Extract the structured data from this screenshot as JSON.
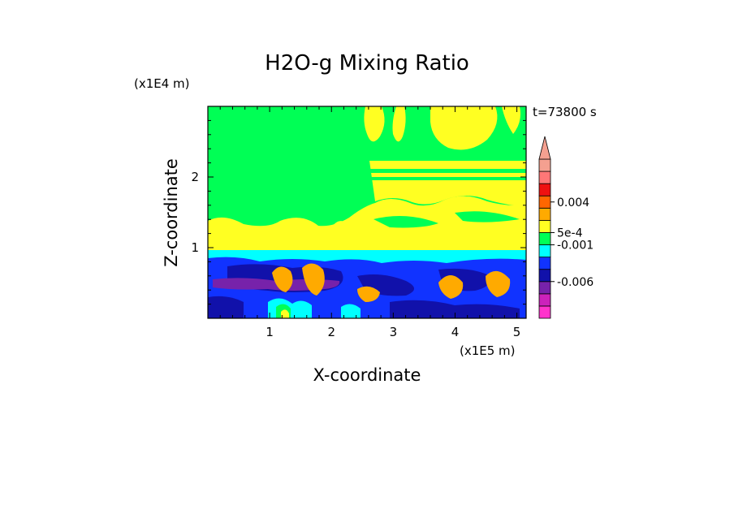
{
  "chart_data": {
    "type": "heatmap",
    "title": "H2O-g Mixing Ratio",
    "time_label": "t=73800 s",
    "xlabel": "X-coordinate",
    "ylabel": "Z-coordinate",
    "x_scale_label": "(x1E5 m)",
    "y_scale_label": "(x1E4 m)",
    "xlim": [
      0,
      5.15
    ],
    "ylim": [
      0,
      3.0
    ],
    "x_ticks": [
      {
        "value": 1,
        "label": "1"
      },
      {
        "value": 2,
        "label": "2"
      },
      {
        "value": 3,
        "label": "3"
      },
      {
        "value": 4,
        "label": "4"
      },
      {
        "value": 5,
        "label": "5"
      }
    ],
    "y_ticks": [
      {
        "value": 1,
        "label": "1"
      },
      {
        "value": 2,
        "label": "2"
      }
    ],
    "colorbar": {
      "extend": "max",
      "levels_bottom_to_top": [
        "#ff33cc",
        "#cc22bb",
        "#7722aa",
        "#1111aa",
        "#1133ff",
        "#00ffff",
        "#00ff55",
        "#ffff22",
        "#ffaa00",
        "#ff6600",
        "#ee1111",
        "#ff7777",
        "#f4a090"
      ],
      "labels": [
        {
          "text": "-0.006",
          "level": 3
        },
        {
          "text": "-0.001",
          "level": 6
        },
        {
          "text": "5e-4",
          "level": 7
        },
        {
          "text": "0.004",
          "level": 9.5
        }
      ]
    },
    "fields": [
      {
        "color": "#00ff55",
        "region": "upper domain, z from 1.0 to 3.0"
      },
      {
        "color": "#ffff22",
        "region": "plumes rising from z=0.9 to z=3.0 for x from 2.2 to 5.15"
      },
      {
        "color": "#00ffff",
        "region": "band near z=0.9"
      },
      {
        "color": "#1133ff",
        "region": "lower layer, z from 0 to 0.85"
      },
      {
        "color": "#1111aa",
        "region": "embedded cells, z from 0.3 to 0.8"
      },
      {
        "color": "#7722aa",
        "region": "core near x=0.6 to 2.0, z=0.45"
      },
      {
        "color": "#ffaa00",
        "region": "convective cores at x=1.1, 1.5, 2.4, 3.9, 4.7"
      }
    ]
  }
}
